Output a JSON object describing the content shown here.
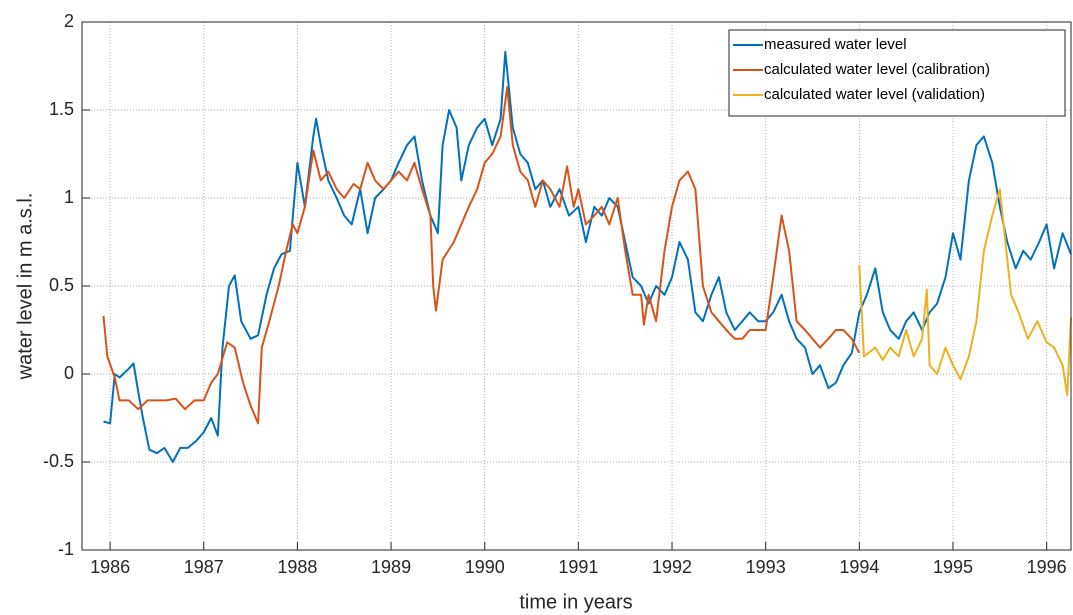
{
  "chart_data": {
    "type": "line",
    "x_label": "time in years",
    "y_label": "water level in m a.s.l.",
    "xlim": [
      1985.7,
      1996.26
    ],
    "ylim": [
      -1,
      2
    ],
    "xticks": [
      1986,
      1987,
      1988,
      1989,
      1990,
      1991,
      1992,
      1993,
      1994,
      1995,
      1996
    ],
    "yticks": [
      -1,
      -0.5,
      0,
      0.5,
      1,
      1.5,
      2
    ],
    "grid": true,
    "legend": "top-right",
    "series": [
      {
        "name": "measured water level",
        "color": "#0072BD",
        "x": [
          1985.93,
          1986.0,
          1986.05,
          1986.1,
          1986.2,
          1986.25,
          1986.3,
          1986.35,
          1986.42,
          1986.5,
          1986.58,
          1986.67,
          1986.75,
          1986.83,
          1986.92,
          1987.0,
          1987.08,
          1987.15,
          1987.2,
          1987.27,
          1987.33,
          1987.4,
          1987.5,
          1987.58,
          1987.67,
          1987.75,
          1987.83,
          1987.92,
          1988.0,
          1988.08,
          1988.17,
          1988.2,
          1988.25,
          1988.33,
          1988.42,
          1988.5,
          1988.58,
          1988.67,
          1988.75,
          1988.83,
          1988.92,
          1989.0,
          1989.08,
          1989.17,
          1989.25,
          1989.33,
          1989.42,
          1989.5,
          1989.55,
          1989.62,
          1989.7,
          1989.75,
          1989.83,
          1989.92,
          1990.0,
          1990.08,
          1990.17,
          1990.22,
          1990.3,
          1990.38,
          1990.46,
          1990.54,
          1990.62,
          1990.7,
          1990.8,
          1990.9,
          1991.0,
          1991.08,
          1991.17,
          1991.25,
          1991.33,
          1991.42,
          1991.5,
          1991.58,
          1991.67,
          1991.75,
          1991.83,
          1991.92,
          1992.0,
          1992.08,
          1992.17,
          1992.25,
          1992.33,
          1992.42,
          1992.5,
          1992.58,
          1992.67,
          1992.75,
          1992.83,
          1992.92,
          1993.0,
          1993.08,
          1993.17,
          1993.25,
          1993.33,
          1993.42,
          1993.5,
          1993.58,
          1993.67,
          1993.75,
          1993.83,
          1993.92,
          1994.0,
          1994.08,
          1994.17,
          1994.25,
          1994.33,
          1994.42,
          1994.5,
          1994.58,
          1994.67,
          1994.75,
          1994.83,
          1994.92,
          1995.0,
          1995.08,
          1995.17,
          1995.25,
          1995.33,
          1995.42,
          1995.5,
          1995.58,
          1995.67,
          1995.75,
          1995.83,
          1995.92,
          1996.0,
          1996.08,
          1996.17,
          1996.26
        ],
        "values": [
          -0.27,
          -0.28,
          0.0,
          -0.02,
          0.03,
          0.06,
          -0.1,
          -0.25,
          -0.43,
          -0.45,
          -0.42,
          -0.5,
          -0.42,
          -0.42,
          -0.38,
          -0.33,
          -0.25,
          -0.35,
          0.15,
          0.5,
          0.56,
          0.3,
          0.2,
          0.22,
          0.45,
          0.6,
          0.68,
          0.7,
          1.2,
          0.95,
          1.35,
          1.45,
          1.3,
          1.1,
          1.0,
          0.9,
          0.85,
          1.05,
          0.8,
          1.0,
          1.05,
          1.1,
          1.2,
          1.3,
          1.35,
          1.1,
          0.9,
          0.8,
          1.3,
          1.5,
          1.4,
          1.1,
          1.3,
          1.4,
          1.45,
          1.3,
          1.45,
          1.83,
          1.4,
          1.25,
          1.2,
          1.05,
          1.1,
          0.95,
          1.05,
          0.9,
          0.95,
          0.75,
          0.95,
          0.9,
          1.0,
          0.95,
          0.75,
          0.55,
          0.5,
          0.4,
          0.5,
          0.45,
          0.55,
          0.75,
          0.65,
          0.35,
          0.3,
          0.45,
          0.55,
          0.35,
          0.25,
          0.3,
          0.35,
          0.3,
          0.3,
          0.35,
          0.45,
          0.3,
          0.2,
          0.15,
          0.0,
          0.05,
          -0.08,
          -0.05,
          0.05,
          0.12,
          0.35,
          0.45,
          0.6,
          0.35,
          0.25,
          0.2,
          0.3,
          0.35,
          0.25,
          0.35,
          0.4,
          0.55,
          0.8,
          0.65,
          1.1,
          1.3,
          1.35,
          1.2,
          0.95,
          0.75,
          0.6,
          0.7,
          0.65,
          0.75,
          0.85,
          0.6,
          0.8,
          0.68
        ]
      },
      {
        "name": "calculated water level (calibration)",
        "color": "#D95319",
        "x": [
          1985.93,
          1985.97,
          1986.05,
          1986.1,
          1986.2,
          1986.3,
          1986.4,
          1986.5,
          1986.6,
          1986.7,
          1986.8,
          1986.9,
          1987.0,
          1987.08,
          1987.15,
          1987.25,
          1987.33,
          1987.42,
          1987.5,
          1987.58,
          1987.62,
          1987.7,
          1987.8,
          1987.88,
          1987.95,
          1988.0,
          1988.08,
          1988.17,
          1988.25,
          1988.33,
          1988.42,
          1988.5,
          1988.6,
          1988.67,
          1988.75,
          1988.83,
          1988.92,
          1989.0,
          1989.08,
          1989.17,
          1989.25,
          1989.33,
          1989.42,
          1989.45,
          1989.48,
          1989.55,
          1989.67,
          1989.75,
          1989.83,
          1989.92,
          1990.0,
          1990.08,
          1990.17,
          1990.24,
          1990.3,
          1990.38,
          1990.46,
          1990.54,
          1990.62,
          1990.7,
          1990.8,
          1990.88,
          1990.95,
          1991.0,
          1991.08,
          1991.17,
          1991.25,
          1991.33,
          1991.42,
          1991.5,
          1991.58,
          1991.67,
          1991.7,
          1991.75,
          1991.83,
          1991.92,
          1992.0,
          1992.08,
          1992.17,
          1992.25,
          1992.33,
          1992.42,
          1992.5,
          1992.58,
          1992.67,
          1992.75,
          1992.83,
          1992.92,
          1993.0,
          1993.08,
          1993.17,
          1993.25,
          1993.33,
          1993.42,
          1993.5,
          1993.58,
          1993.67,
          1993.75,
          1993.83,
          1993.92,
          1994.0
        ],
        "values": [
          0.33,
          0.1,
          -0.02,
          -0.15,
          -0.15,
          -0.2,
          -0.15,
          -0.15,
          -0.15,
          -0.14,
          -0.2,
          -0.15,
          -0.15,
          -0.05,
          0.0,
          0.18,
          0.15,
          -0.05,
          -0.18,
          -0.28,
          0.15,
          0.3,
          0.5,
          0.7,
          0.85,
          0.8,
          0.95,
          1.27,
          1.1,
          1.15,
          1.05,
          1.0,
          1.08,
          1.05,
          1.2,
          1.1,
          1.05,
          1.1,
          1.15,
          1.1,
          1.2,
          1.05,
          0.9,
          0.5,
          0.36,
          0.65,
          0.75,
          0.85,
          0.95,
          1.05,
          1.2,
          1.25,
          1.35,
          1.63,
          1.3,
          1.15,
          1.1,
          0.95,
          1.1,
          1.05,
          0.95,
          1.18,
          0.95,
          1.05,
          0.85,
          0.9,
          0.95,
          0.85,
          1.0,
          0.7,
          0.45,
          0.45,
          0.28,
          0.45,
          0.3,
          0.7,
          0.95,
          1.1,
          1.15,
          1.05,
          0.5,
          0.35,
          0.3,
          0.25,
          0.2,
          0.2,
          0.25,
          0.25,
          0.25,
          0.55,
          0.9,
          0.7,
          0.3,
          0.25,
          0.2,
          0.15,
          0.2,
          0.25,
          0.25,
          0.2,
          0.12
        ]
      },
      {
        "name": "calculated water level (validation)",
        "color": "#EDB120",
        "x": [
          1994.0,
          1994.05,
          1994.17,
          1994.25,
          1994.33,
          1994.42,
          1994.5,
          1994.58,
          1994.67,
          1994.72,
          1994.75,
          1994.83,
          1994.92,
          1995.0,
          1995.08,
          1995.17,
          1995.25,
          1995.33,
          1995.42,
          1995.5,
          1995.55,
          1995.62,
          1995.7,
          1995.8,
          1995.9,
          1996.0,
          1996.08,
          1996.17,
          1996.22,
          1996.26
        ],
        "values": [
          0.62,
          0.1,
          0.15,
          0.08,
          0.15,
          0.1,
          0.25,
          0.1,
          0.2,
          0.48,
          0.05,
          0.0,
          0.15,
          0.05,
          -0.03,
          0.1,
          0.3,
          0.7,
          0.9,
          1.05,
          0.8,
          0.45,
          0.35,
          0.2,
          0.3,
          0.18,
          0.15,
          0.05,
          -0.12,
          0.32
        ]
      }
    ]
  }
}
